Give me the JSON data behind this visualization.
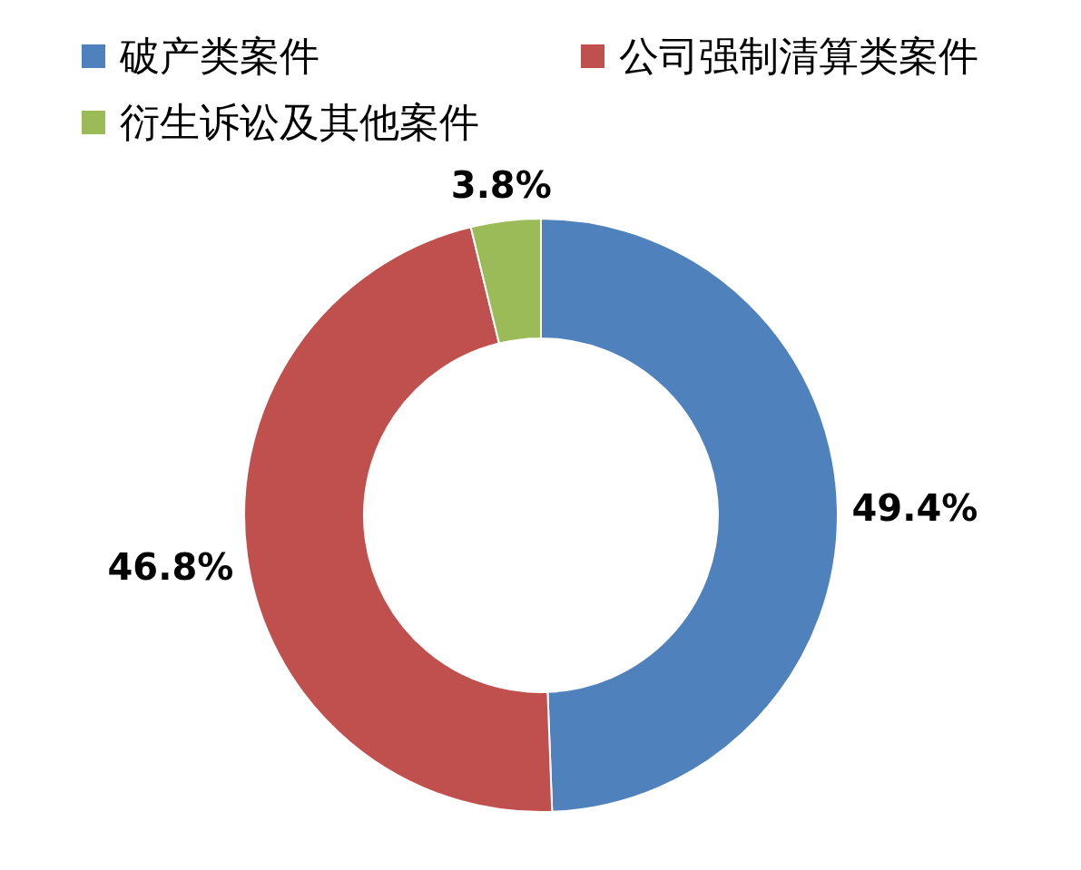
{
  "chart_data": {
    "type": "donut",
    "categories": [
      "破产类案件",
      "公司强制清算类案件",
      "衍生诉讼及其他案件"
    ],
    "values": [
      49.4,
      46.8,
      3.8
    ],
    "colors": [
      "#4f81bd",
      "#c0504d",
      "#9bbb59"
    ],
    "value_labels": [
      "49.4%",
      "46.8%",
      "3.8%"
    ],
    "legend": "top"
  }
}
